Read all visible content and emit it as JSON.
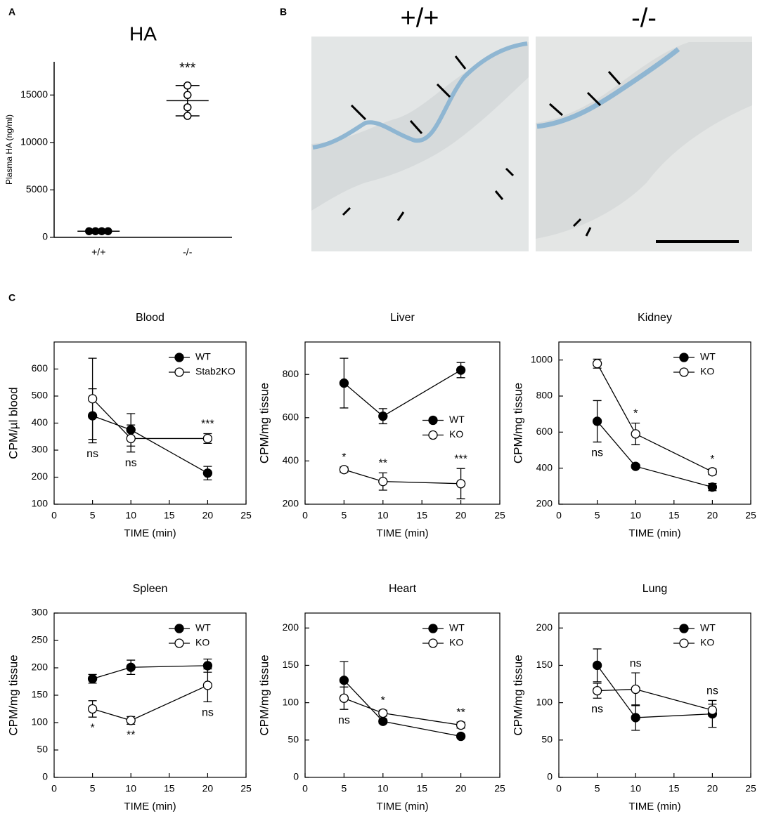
{
  "panel_labels": [
    "A",
    "B",
    "C"
  ],
  "images": {
    "labels": [
      "+/+",
      "-/-"
    ]
  },
  "chart_data": [
    {
      "type": "dot",
      "title": "HA",
      "ylabel": "Plasma HA (ng/ml)",
      "categories": [
        "+/+",
        "-/-"
      ],
      "ylim": [
        0,
        18500
      ],
      "yticks": [
        0,
        5000,
        10000,
        15000
      ],
      "points": [
        [
          650,
          650,
          650,
          650
        ],
        [
          16000,
          15000,
          13700,
          12800
        ]
      ],
      "markers": [
        "filled",
        "open"
      ],
      "means": [
        650,
        14400
      ],
      "sd": [
        40,
        1600
      ],
      "annotations": [
        null,
        "***"
      ],
      "color": "#000000"
    },
    {
      "type": "line",
      "title": "Blood",
      "xlabel": "TIME (min)",
      "ylabel": "CPM/µl blood",
      "x": [
        5,
        10,
        20
      ],
      "xlim": [
        0,
        25
      ],
      "xticks": [
        0,
        5,
        10,
        15,
        20,
        25
      ],
      "ylim": [
        100,
        700
      ],
      "yticks": [
        100,
        200,
        300,
        400,
        500,
        600
      ],
      "legend": "upper right",
      "series": [
        {
          "name": "WT",
          "color": "#000000",
          "marker": "filled",
          "values": [
            427,
            375,
            215
          ],
          "errors": [
            100,
            60,
            25
          ]
        },
        {
          "name": "Stab2KO",
          "color": "#000000",
          "marker": "open",
          "values": [
            490,
            343,
            343
          ],
          "errors": [
            150,
            50,
            18
          ]
        }
      ],
      "annotations": [
        "ns",
        "ns",
        "***"
      ]
    },
    {
      "type": "line",
      "title": "Liver",
      "xlabel": "TIME (min)",
      "ylabel": "CPM/mg tissue",
      "x": [
        5,
        10,
        20
      ],
      "xlim": [
        0,
        25
      ],
      "xticks": [
        0,
        5,
        10,
        15,
        20,
        25
      ],
      "ylim": [
        200,
        950
      ],
      "yticks": [
        200,
        400,
        600,
        800
      ],
      "legend": "center right",
      "series": [
        {
          "name": "WT",
          "color": "#000000",
          "marker": "filled",
          "values": [
            760,
            607,
            820
          ],
          "errors": [
            115,
            35,
            35
          ]
        },
        {
          "name": "KO",
          "color": "#000000",
          "marker": "open",
          "values": [
            360,
            305,
            295
          ],
          "errors": [
            12,
            40,
            70
          ]
        }
      ],
      "annotations": [
        "*",
        "**",
        "***"
      ]
    },
    {
      "type": "line",
      "title": "Kidney",
      "xlabel": "TIME (min)",
      "ylabel": "CPM/mg tissue",
      "x": [
        5,
        10,
        20
      ],
      "xlim": [
        0,
        25
      ],
      "xticks": [
        0,
        5,
        10,
        15,
        20,
        25
      ],
      "ylim": [
        200,
        1100
      ],
      "yticks": [
        200,
        400,
        600,
        800,
        1000
      ],
      "legend": "upper right",
      "series": [
        {
          "name": "WT",
          "color": "#000000",
          "marker": "filled",
          "values": [
            660,
            410,
            295
          ],
          "errors": [
            115,
            10,
            20
          ]
        },
        {
          "name": "KO",
          "color": "#000000",
          "marker": "open",
          "values": [
            980,
            590,
            380
          ],
          "errors": [
            25,
            60,
            15
          ]
        }
      ],
      "annotations": [
        "ns",
        "*",
        "*"
      ]
    },
    {
      "type": "line",
      "title": "Spleen",
      "xlabel": "TIME (min)",
      "ylabel": "CPM/mg tissue",
      "x": [
        5,
        10,
        20
      ],
      "xlim": [
        0,
        25
      ],
      "xticks": [
        0,
        5,
        10,
        15,
        20,
        25
      ],
      "ylim": [
        0,
        300
      ],
      "yticks": [
        0,
        50,
        100,
        150,
        200,
        250,
        300
      ],
      "legend": "upper right",
      "series": [
        {
          "name": "WT",
          "color": "#000000",
          "marker": "filled",
          "values": [
            180,
            201,
            204
          ],
          "errors": [
            8,
            13,
            12
          ]
        },
        {
          "name": "KO",
          "color": "#000000",
          "marker": "open",
          "values": [
            125,
            104,
            168
          ],
          "errors": [
            15,
            7,
            30
          ]
        }
      ],
      "annotations": [
        "*",
        "**",
        "ns"
      ]
    },
    {
      "type": "line",
      "title": "Heart",
      "xlabel": "TIME (min)",
      "ylabel": "CPM/mg tissue",
      "x": [
        5,
        10,
        20
      ],
      "xlim": [
        0,
        25
      ],
      "xticks": [
        0,
        5,
        10,
        15,
        20,
        25
      ],
      "ylim": [
        0,
        220
      ],
      "yticks": [
        0,
        50,
        100,
        150,
        200
      ],
      "legend": "upper right",
      "series": [
        {
          "name": "WT",
          "color": "#000000",
          "marker": "filled",
          "values": [
            130,
            75,
            55
          ],
          "errors": [
            25,
            3,
            2
          ]
        },
        {
          "name": "KO",
          "color": "#000000",
          "marker": "open",
          "values": [
            106,
            86,
            70
          ],
          "errors": [
            15,
            4,
            4
          ]
        }
      ],
      "annotations": [
        "ns",
        "*",
        "**"
      ]
    },
    {
      "type": "line",
      "title": "Lung",
      "xlabel": "TIME (min)",
      "ylabel": "CPM/mg tissue",
      "x": [
        5,
        10,
        20
      ],
      "xlim": [
        0,
        25
      ],
      "xticks": [
        0,
        5,
        10,
        15,
        20,
        25
      ],
      "ylim": [
        0,
        220
      ],
      "yticks": [
        0,
        50,
        100,
        150,
        200
      ],
      "legend": "upper right",
      "series": [
        {
          "name": "WT",
          "color": "#000000",
          "marker": "filled",
          "values": [
            150,
            80,
            85
          ],
          "errors": [
            22,
            17,
            18
          ]
        },
        {
          "name": "KO",
          "color": "#000000",
          "marker": "open",
          "values": [
            116,
            118,
            90
          ],
          "errors": [
            10,
            22,
            8
          ]
        }
      ],
      "annotations": [
        "ns",
        "ns",
        "ns"
      ]
    }
  ]
}
